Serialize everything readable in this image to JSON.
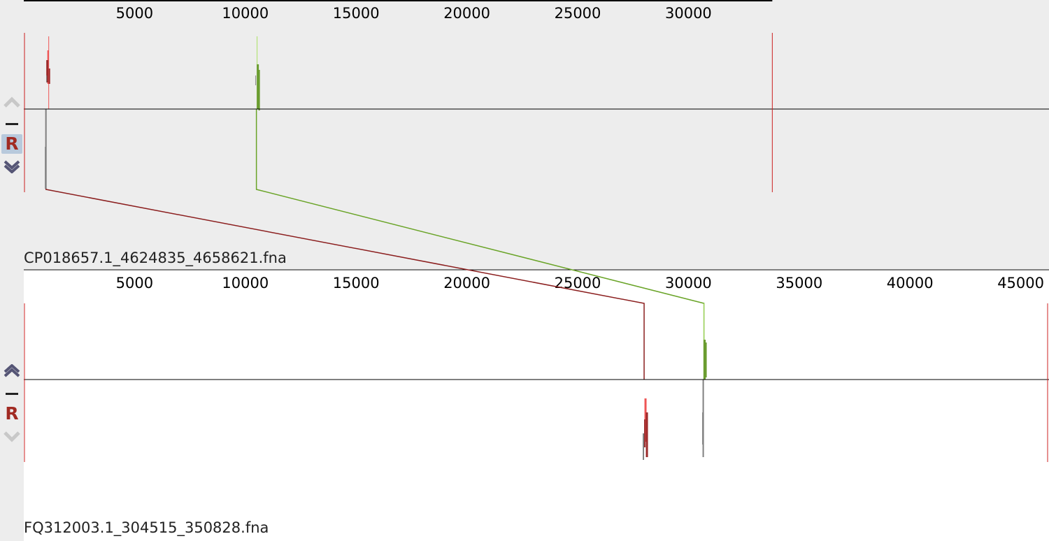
{
  "panels": [
    {
      "name": "CP018657.1_4624835_4658621.fna",
      "sequence_length": 33786,
      "background": "#ededed",
      "controls": {
        "up_enabled": false,
        "down_enabled": true,
        "reverse_label": "R",
        "reverse_selected": true
      },
      "ticks": [
        5000,
        10000,
        15000,
        20000,
        25000,
        30000
      ]
    },
    {
      "name": "FQ312003.1_304515_350828.fna",
      "sequence_length": 46313,
      "background": "#ffffff",
      "controls": {
        "up_enabled": true,
        "down_enabled": false,
        "reverse_label": "R",
        "reverse_selected": false
      },
      "ticks": [
        5000,
        10000,
        15000,
        20000,
        25000,
        30000,
        35000,
        40000,
        45000
      ]
    }
  ],
  "matches": [
    {
      "name": "match-red",
      "color": "#8b1e1e",
      "top_pos": 1000,
      "bottom_pos": 28000
    },
    {
      "name": "match-green",
      "color": "#6aa428",
      "top_pos": 10500,
      "bottom_pos": 30700
    }
  ],
  "colors": {
    "border": "#cc2020",
    "axis": "#000000",
    "red_light": "#ee5555",
    "red_dark": "#9b2a2a",
    "green_light": "#a8e060",
    "green_dark": "#6a9c30",
    "gray": "#808080",
    "arrow_enabled": "#555575",
    "arrow_disabled": "#c8c8c8"
  }
}
